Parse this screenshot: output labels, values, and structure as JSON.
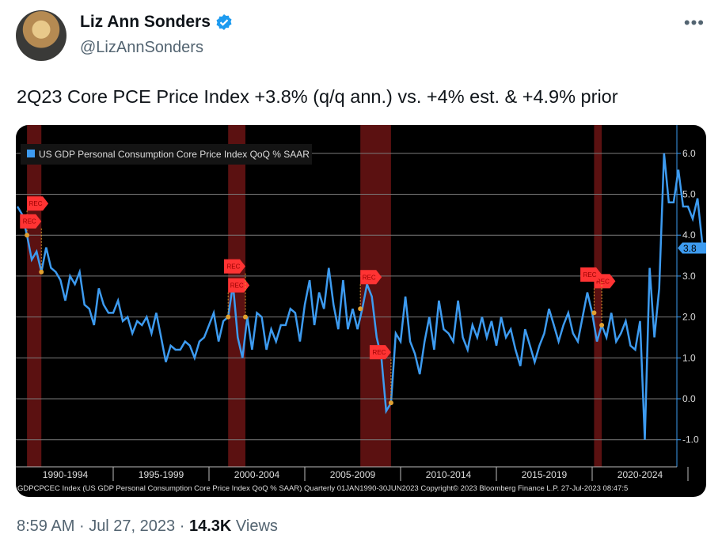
{
  "author": {
    "name": "Liz Ann Sonders",
    "handle": "@LizAnnSonders",
    "verified": true
  },
  "tweet_text": "2Q23 Core PCE Price Index +3.8% (q/q ann.) vs. +4% est. & +4.9% prior",
  "footer": {
    "time": "8:59 AM",
    "date": "Jul 27, 2023",
    "views_count": "14.3K",
    "views_label": "Views",
    "separator": "·"
  },
  "colors": {
    "line": "#3d9bf0",
    "recession": "#6b1414",
    "flag": "#ff3333",
    "grid": "#7a7a7a"
  },
  "chart_data": {
    "type": "line",
    "title": "US GDP Personal Consumption Core Price Index QoQ % SAAR",
    "frequency": "quarterly",
    "x_start": 1990,
    "values": [
      4.7,
      4.5,
      4.0,
      3.4,
      3.6,
      3.1,
      3.7,
      3.2,
      3.1,
      2.9,
      2.4,
      3.0,
      2.8,
      3.1,
      2.3,
      2.2,
      1.8,
      2.7,
      2.3,
      2.1,
      2.1,
      2.4,
      1.9,
      2.0,
      1.6,
      1.9,
      1.8,
      2.0,
      1.6,
      2.1,
      1.5,
      0.9,
      1.3,
      1.2,
      1.2,
      1.4,
      1.3,
      1.0,
      1.4,
      1.5,
      1.8,
      2.1,
      1.4,
      1.9,
      2.0,
      2.8,
      1.5,
      1.0,
      2.0,
      1.2,
      2.1,
      2.0,
      1.2,
      1.7,
      1.4,
      1.8,
      1.8,
      2.2,
      2.1,
      1.4,
      2.3,
      2.9,
      1.8,
      2.6,
      2.2,
      3.2,
      2.3,
      1.7,
      2.9,
      1.7,
      2.2,
      1.7,
      2.2,
      2.8,
      2.5,
      1.5,
      1.0,
      -0.3,
      -0.1,
      1.6,
      1.4,
      2.5,
      1.4,
      1.1,
      0.6,
      1.4,
      2.0,
      1.2,
      2.4,
      1.7,
      1.6,
      1.4,
      2.4,
      1.5,
      1.2,
      1.8,
      1.5,
      2.0,
      1.5,
      1.9,
      1.3,
      2.0,
      1.5,
      1.7,
      1.2,
      0.8,
      1.7,
      1.3,
      0.9,
      1.3,
      1.6,
      2.2,
      1.8,
      1.4,
      1.8,
      2.1,
      1.6,
      1.4,
      2.0,
      2.6,
      2.1,
      1.4,
      1.8,
      1.5,
      2.1,
      1.4,
      1.6,
      1.9,
      1.3,
      1.2,
      1.9,
      -1.0,
      3.2,
      1.5,
      2.7,
      6.0,
      4.8,
      4.8,
      5.6,
      4.7,
      4.7,
      4.4,
      4.9,
      3.8
    ],
    "last_value_label": "3.8",
    "recessions": [
      [
        1990.5,
        1991.25
      ],
      [
        2001.0,
        2001.9
      ],
      [
        2007.9,
        2009.5
      ],
      [
        2020.1,
        2020.5
      ]
    ],
    "rec_label": "REC",
    "y_ticks": [
      "6.0",
      "5.0",
      "4.0",
      "3.0",
      "2.0",
      "1.0",
      "0.0",
      "-1.0"
    ],
    "y_tick_values": [
      6,
      5,
      4,
      3,
      2,
      1,
      0,
      -1
    ],
    "ylim": [
      -1.7,
      6.7
    ],
    "x_ticks": [
      "1990-1994",
      "1995-1999",
      "2000-2004",
      "2005-2009",
      "2010-2014",
      "2015-2019",
      "2020-2024"
    ],
    "x_tick_starts": [
      1990,
      1995,
      2000,
      2005,
      2010,
      2015,
      2020
    ],
    "source_line": "GDPCPCEC Index (US GDP Personal Consumption Core Price Index QoQ % SAAR)  Quarterly 01JAN1990-30JUN2023  Copyright© 2023 Bloomberg Finance L.P.  27-Jul-2023 08:47:5"
  }
}
